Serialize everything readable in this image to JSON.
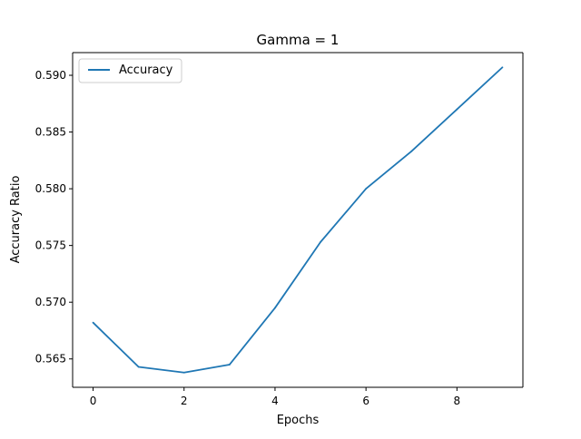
{
  "chart_data": {
    "type": "line",
    "title": "Gamma = 1",
    "xlabel": "Epochs",
    "ylabel": "Accuracy Ratio",
    "x": [
      0,
      1,
      2,
      3,
      4,
      5,
      6,
      7,
      8,
      9
    ],
    "xlim": [
      -0.45,
      9.45
    ],
    "ylim": [
      0.5625,
      0.592
    ],
    "xticks": [
      0,
      2,
      4,
      6,
      8
    ],
    "xtick_labels": [
      "0",
      "2",
      "4",
      "6",
      "8"
    ],
    "yticks": [
      0.565,
      0.57,
      0.575,
      0.58,
      0.585,
      0.59
    ],
    "ytick_labels": [
      "0.565",
      "0.570",
      "0.575",
      "0.580",
      "0.585",
      "0.590"
    ],
    "grid": false,
    "legend_position": "top-left",
    "series": [
      {
        "name": "Accuracy",
        "color": "#1f77b4",
        "values": [
          0.5682,
          0.5643,
          0.5638,
          0.5645,
          0.5695,
          0.5753,
          0.58,
          0.5833,
          0.587,
          0.5907
        ]
      }
    ]
  }
}
